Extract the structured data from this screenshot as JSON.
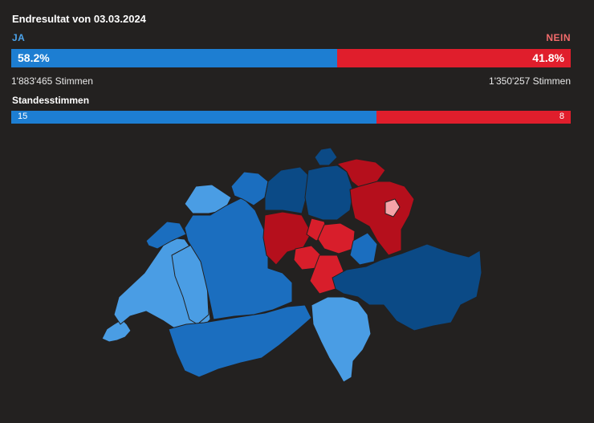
{
  "header": {
    "title": "Endresultat von 03.03.2024"
  },
  "result": {
    "yes_label": "JA",
    "no_label": "NEIN",
    "yes_percent": 58.2,
    "no_percent": 41.8,
    "yes_percent_text": "58.2%",
    "no_percent_text": "41.8%",
    "yes_votes_text": "1'883'465 Stimmen",
    "no_votes_text": "1'350'257 Stimmen"
  },
  "standesstimmen": {
    "title": "Standesstimmen",
    "yes": 15,
    "no": 8,
    "yes_text": "15",
    "no_text": "8"
  },
  "colors": {
    "yes": "#1d7ed2",
    "no": "#e01e2c",
    "yes_label": "#4ba3ea",
    "no_label": "#f26b6b",
    "map_strong_yes": "#0b4a86",
    "map_mid_yes": "#1b6ebf",
    "map_light_yes": "#4a9de4",
    "map_strong_no": "#b50f1c",
    "map_mid_no": "#d81e2b",
    "map_light_no": "#f5a3a8",
    "background": "#232120"
  },
  "chart_data": {
    "type": "map",
    "title": "Endresultat von 03.03.2024",
    "yes_percent": 58.2,
    "no_percent": 41.8,
    "yes_votes": 1883465,
    "no_votes": 1350257,
    "cantons_yes": 15,
    "cantons_no": 8,
    "legend": "none"
  }
}
